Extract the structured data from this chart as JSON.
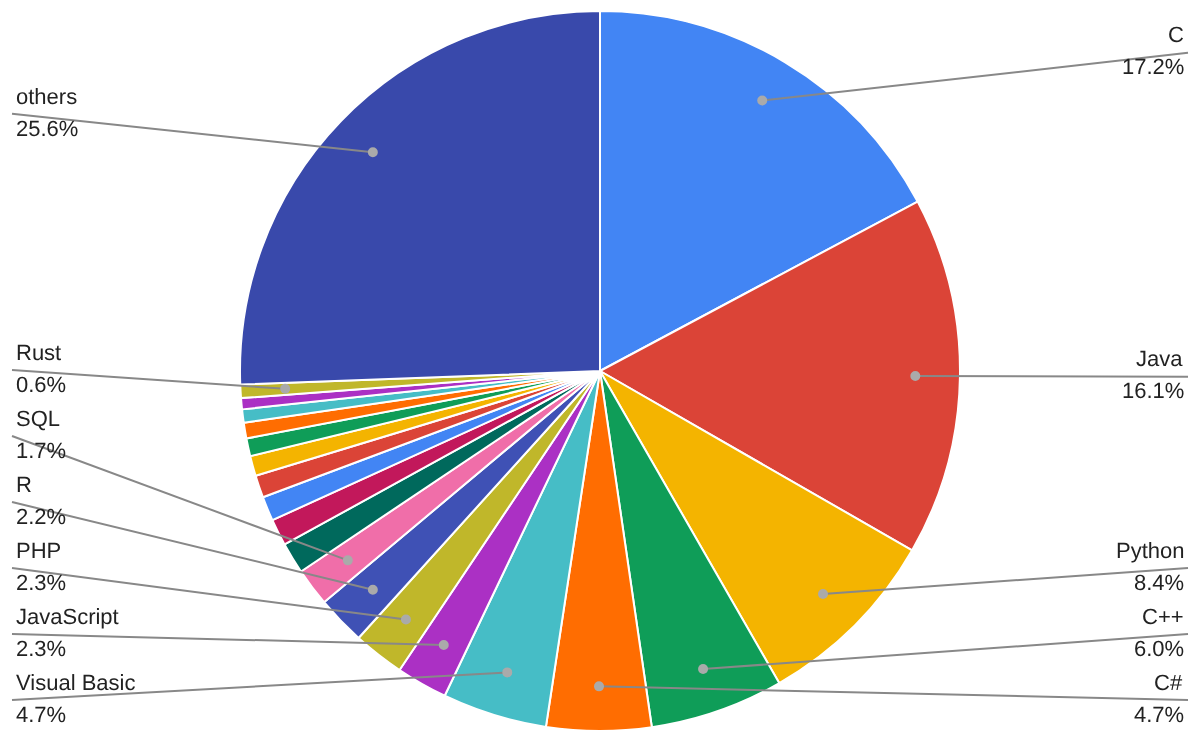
{
  "chart_data": {
    "type": "pie",
    "categories": [
      "C",
      "Java",
      "Python",
      "C++",
      "C#",
      "Visual Basic",
      "JavaScript",
      "PHP",
      "R",
      "SQL",
      null,
      null,
      null,
      null,
      null,
      null,
      null,
      null,
      null,
      "Rust",
      "others"
    ],
    "values": [
      17.2,
      16.1,
      8.4,
      6.0,
      4.7,
      4.7,
      2.3,
      2.3,
      2.2,
      1.7,
      1.4,
      1.2,
      1.1,
      1.0,
      0.9,
      0.8,
      0.7,
      0.6,
      0.5,
      0.6,
      25.6
    ],
    "value_labels": [
      "17.2%",
      "16.1%",
      "8.4%",
      "6.0%",
      "4.7%",
      "4.7%",
      "2.3%",
      "2.3%",
      "2.2%",
      "1.7%",
      null,
      null,
      null,
      null,
      null,
      null,
      null,
      null,
      null,
      "0.6%",
      "25.6%"
    ],
    "colors": [
      "#4285f4",
      "#db4437",
      "#f4b400",
      "#0f9d58",
      "#ff6d01",
      "#46bdc6",
      "#ab30c4",
      "#c0b72a",
      "#3f51b5",
      "#f06ea9",
      "#00695c",
      "#c2185b",
      "#4285f4",
      "#db4437",
      "#f4b400",
      "#0f9d58",
      "#ff6d01",
      "#46bdc6",
      "#ab30c4",
      "#c0b72a",
      "#3949ab"
    ],
    "legend": false
  }
}
